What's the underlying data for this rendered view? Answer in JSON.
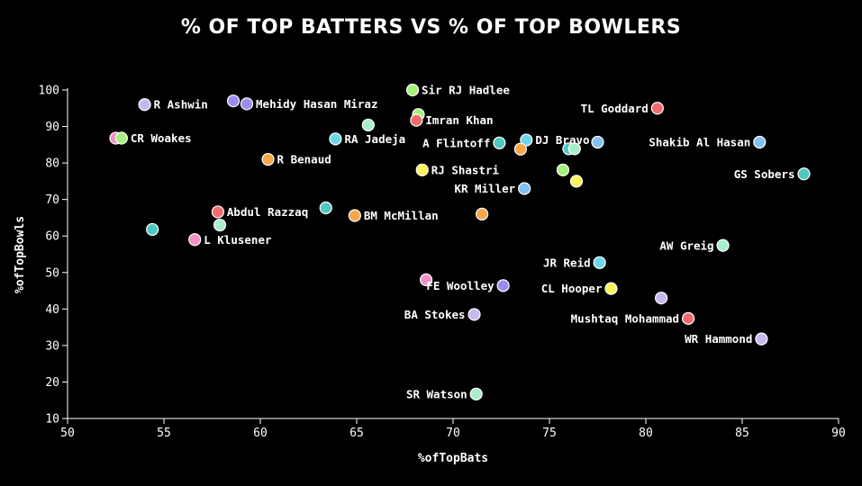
{
  "chart_data": {
    "type": "scatter",
    "title": "% OF TOP BATTERS VS % OF TOP BOWLERS",
    "xlabel": "%ofTopBats",
    "ylabel": "%ofTopBowls",
    "xlim": [
      50,
      90
    ],
    "ylim": [
      10,
      100
    ],
    "xticks": [
      50,
      55,
      60,
      65,
      70,
      75,
      80,
      85,
      90
    ],
    "yticks": [
      10,
      20,
      30,
      40,
      50,
      60,
      70,
      80,
      90,
      100
    ],
    "grid": false,
    "points": [
      {
        "x": 54.0,
        "y": 96.0,
        "label": "R Ashwin",
        "labelSide": "right",
        "color": "#c6b8f2"
      },
      {
        "x": 58.6,
        "y": 97.0,
        "label": "",
        "labelSide": "right",
        "color": "#9d8cf0"
      },
      {
        "x": 59.3,
        "y": 96.2,
        "label": "Mehidy Hasan Miraz",
        "labelSide": "right",
        "color": "#9d8cf0"
      },
      {
        "x": 52.5,
        "y": 86.8,
        "label": "",
        "labelSide": "right",
        "color": "#f48fc8"
      },
      {
        "x": 52.8,
        "y": 86.8,
        "label": "CR Woakes",
        "labelSide": "right",
        "color": "#a6f27a"
      },
      {
        "x": 65.6,
        "y": 90.4,
        "label": "",
        "labelSide": "right",
        "color": "#a8efc9"
      },
      {
        "x": 63.9,
        "y": 86.6,
        "label": "RA Jadeja",
        "labelSide": "right",
        "color": "#6fd6ea"
      },
      {
        "x": 60.4,
        "y": 81.0,
        "label": "R Benaud",
        "labelSide": "right",
        "color": "#f7a64a"
      },
      {
        "x": 67.9,
        "y": 100.0,
        "label": "Sir RJ Hadlee",
        "labelSide": "right",
        "color": "#a6f27a"
      },
      {
        "x": 68.2,
        "y": 93.3,
        "label": "",
        "labelSide": "right",
        "color": "#a6f27a"
      },
      {
        "x": 68.1,
        "y": 91.7,
        "label": "Imran Khan",
        "labelSide": "right",
        "color": "#f26b6b"
      },
      {
        "x": 72.4,
        "y": 85.5,
        "label": "A Flintoff",
        "labelSide": "left",
        "color": "#4fc8c0"
      },
      {
        "x": 73.8,
        "y": 86.3,
        "label": "DJ Bravo",
        "labelSide": "right",
        "color": "#6fd6ea"
      },
      {
        "x": 73.5,
        "y": 83.8,
        "label": "",
        "labelSide": "right",
        "color": "#f7a64a"
      },
      {
        "x": 68.4,
        "y": 78.1,
        "label": "RJ Shastri",
        "labelSide": "right",
        "color": "#fff25a"
      },
      {
        "x": 75.7,
        "y": 78.1,
        "label": "",
        "labelSide": "right",
        "color": "#a6f27a"
      },
      {
        "x": 76.0,
        "y": 83.9,
        "label": "",
        "labelSide": "right",
        "color": "#4fc8c0"
      },
      {
        "x": 76.3,
        "y": 83.9,
        "label": "",
        "labelSide": "right",
        "color": "#a8efc9"
      },
      {
        "x": 77.5,
        "y": 85.7,
        "label": "",
        "labelSide": "right",
        "color": "#82c0f5"
      },
      {
        "x": 73.7,
        "y": 73.0,
        "label": "KR Miller",
        "labelSide": "left",
        "color": "#82c0f5"
      },
      {
        "x": 76.4,
        "y": 75.0,
        "label": "",
        "labelSide": "right",
        "color": "#fff25a"
      },
      {
        "x": 80.6,
        "y": 95.0,
        "label": "TL Goddard",
        "labelSide": "left",
        "color": "#f26b6b"
      },
      {
        "x": 85.9,
        "y": 85.7,
        "label": "Shakib Al Hasan",
        "labelSide": "left",
        "color": "#82c0f5"
      },
      {
        "x": 88.2,
        "y": 77.0,
        "label": "GS Sobers",
        "labelSide": "left",
        "color": "#4fc8c0"
      },
      {
        "x": 57.8,
        "y": 66.6,
        "label": "Abdul Razzaq",
        "labelSide": "right",
        "color": "#f26b6b"
      },
      {
        "x": 63.4,
        "y": 67.7,
        "label": "",
        "labelSide": "right",
        "color": "#4fc8c0"
      },
      {
        "x": 64.9,
        "y": 65.6,
        "label": "BM McMillan",
        "labelSide": "right",
        "color": "#f7a64a"
      },
      {
        "x": 71.5,
        "y": 66.0,
        "label": "",
        "labelSide": "right",
        "color": "#f7a64a"
      },
      {
        "x": 54.4,
        "y": 61.8,
        "label": "",
        "labelSide": "right",
        "color": "#4fc8c0"
      },
      {
        "x": 57.9,
        "y": 63.0,
        "label": "",
        "labelSide": "right",
        "color": "#a8efc9"
      },
      {
        "x": 56.6,
        "y": 59.0,
        "label": "L Klusener",
        "labelSide": "right",
        "color": "#f48fc8"
      },
      {
        "x": 84.0,
        "y": 57.4,
        "label": "AW Greig",
        "labelSide": "left",
        "color": "#a8efc9"
      },
      {
        "x": 77.6,
        "y": 52.7,
        "label": "JR Reid",
        "labelSide": "left",
        "color": "#6fd6ea"
      },
      {
        "x": 68.6,
        "y": 48.0,
        "label": "",
        "labelSide": "right",
        "color": "#f48fc8"
      },
      {
        "x": 72.6,
        "y": 46.4,
        "label": "FE Woolley",
        "labelSide": "left",
        "color": "#9d8cf0"
      },
      {
        "x": 78.2,
        "y": 45.6,
        "label": "CL Hooper",
        "labelSide": "left",
        "color": "#fff25a"
      },
      {
        "x": 80.8,
        "y": 43.0,
        "label": "",
        "labelSide": "right",
        "color": "#c6b8f2"
      },
      {
        "x": 71.1,
        "y": 38.5,
        "label": "BA Stokes",
        "labelSide": "left",
        "color": "#c6b8f2"
      },
      {
        "x": 82.2,
        "y": 37.4,
        "label": "Mushtaq Mohammad",
        "labelSide": "left",
        "color": "#f26b6b"
      },
      {
        "x": 86.0,
        "y": 31.8,
        "label": "WR Hammond",
        "labelSide": "left",
        "color": "#c6b8f2"
      },
      {
        "x": 71.2,
        "y": 16.7,
        "label": "SR Watson",
        "labelSide": "left",
        "color": "#a8efc9"
      }
    ]
  }
}
